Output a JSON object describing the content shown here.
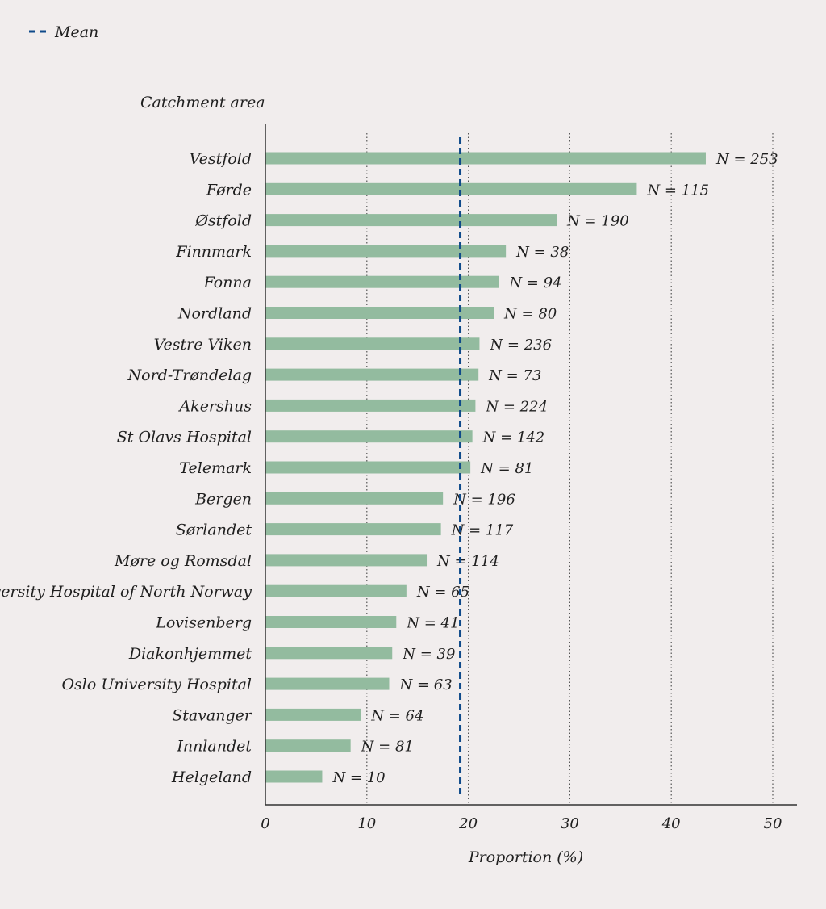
{
  "colors": {
    "background": "#f1eded",
    "bar": "#93bb9f",
    "mean_line": "#0f4a8a",
    "axis": "#333333",
    "grid": "#555555",
    "text": "#1f1f1f"
  },
  "chart_data": {
    "type": "bar",
    "orientation": "horizontal",
    "ylabel": "Catchment area",
    "xlabel": "Proportion (%)",
    "xlim": [
      0,
      50
    ],
    "xticks": [
      0,
      10,
      20,
      30,
      40,
      50
    ],
    "grid": "vertical dotted",
    "legend": {
      "position": "top-left",
      "entries": [
        {
          "label": "Mean",
          "style": "dashed"
        }
      ]
    },
    "mean": 19.2,
    "categories": [
      "Vestfold",
      "Førde",
      "Østfold",
      "Finnmark",
      "Fonna",
      "Nordland",
      "Vestre Viken",
      "Nord-Trøndelag",
      "Akershus",
      "St Olavs Hospital",
      "Telemark",
      "Bergen",
      "Sørlandet",
      "Møre og Romsdal",
      "University Hospital of North Norway",
      "Lovisenberg",
      "Diakonhjemmet",
      "Oslo University Hospital",
      "Stavanger",
      "Innlandet",
      "Helgeland"
    ],
    "values": [
      43.4,
      36.6,
      28.7,
      23.7,
      23.0,
      22.5,
      21.1,
      21.0,
      20.7,
      20.4,
      20.2,
      17.5,
      17.3,
      15.9,
      13.9,
      12.9,
      12.5,
      12.2,
      9.4,
      8.4,
      5.6
    ],
    "n_labels": [
      "N = 253",
      "N = 115",
      "N = 190",
      "N = 38",
      "N = 94",
      "N = 80",
      "N = 236",
      "N = 73",
      "N = 224",
      "N = 142",
      "N = 81",
      "N = 196",
      "N = 117",
      "N = 114",
      "N = 65",
      "N = 41",
      "N = 39",
      "N = 63",
      "N = 64",
      "N = 81",
      "N = 10"
    ]
  }
}
